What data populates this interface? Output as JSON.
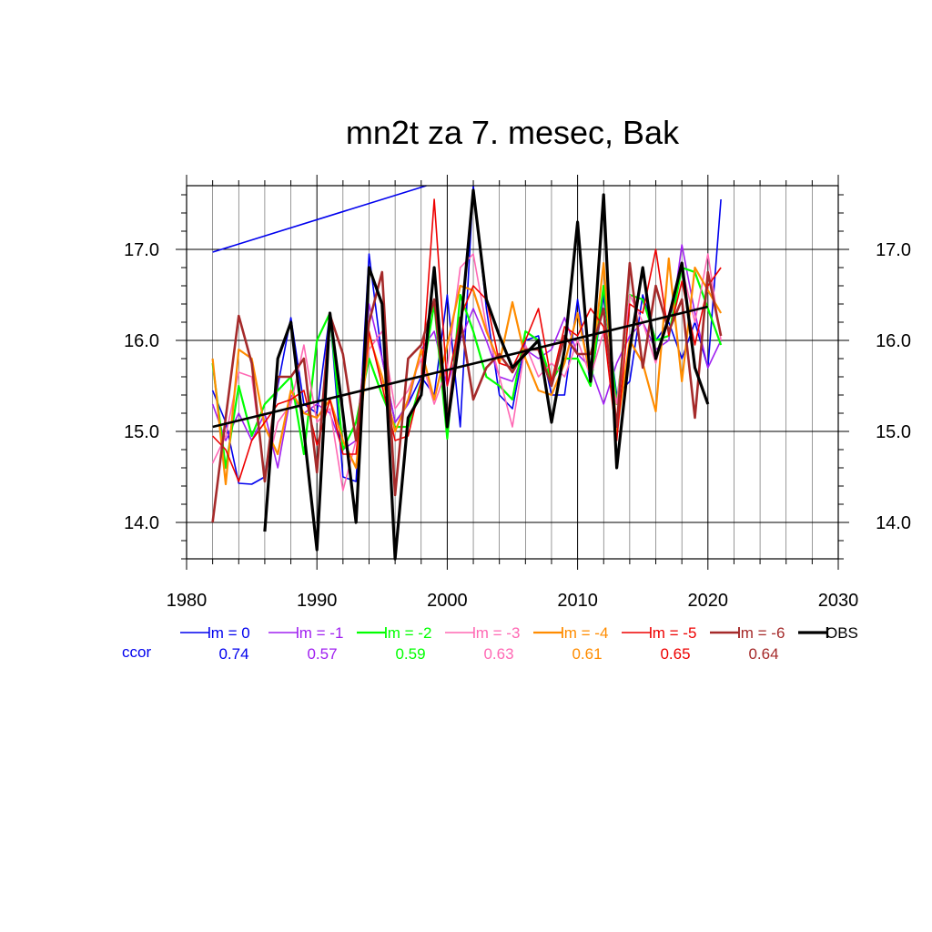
{
  "chart_data": {
    "type": "line",
    "title": "mn2t za 7. mesec, Bak",
    "xlabel": "",
    "ylabel": "",
    "xlim": [
      1980,
      2030
    ],
    "ylim": [
      13.6,
      17.7
    ],
    "xticks": [
      1980,
      1990,
      2000,
      2010,
      2020,
      2030
    ],
    "xtick_labels": [
      "1980",
      "1990",
      "2000",
      "2010",
      "2020",
      "2030"
    ],
    "yticks": [
      14.0,
      15.0,
      16.0,
      17.0
    ],
    "ytick_labels": [
      "14.0",
      "15.0",
      "16.0",
      "17.0"
    ],
    "grid": true,
    "ccor_label": "ccor",
    "series": [
      {
        "name": "lm = 0",
        "ccor": "0.74",
        "color": "#0000ee",
        "width": 1.6,
        "x": [
          1982,
          1983,
          1984,
          1985,
          1986,
          1987,
          1988,
          1989,
          1990,
          1991,
          1992,
          1993,
          1994,
          1995,
          1996,
          1997,
          1998,
          1999,
          2000,
          2001,
          2002,
          2003,
          2004,
          2005,
          2006,
          2007,
          2008,
          2009,
          2010,
          2011,
          2012,
          2013,
          2014,
          2015,
          2016,
          2017,
          2018,
          2019,
          2020,
          2021
        ],
        "y": [
          15.45,
          15.1,
          14.43,
          14.42,
          14.5,
          15.5,
          16.25,
          15.3,
          15.2,
          16.3,
          14.5,
          14.45,
          16.95,
          15.8,
          15.1,
          15.3,
          15.6,
          15.4,
          16.5,
          15.05,
          17.7,
          16.35,
          15.4,
          15.25,
          16.0,
          16.05,
          15.4,
          15.4,
          16.45,
          15.5,
          16.5,
          15.4,
          15.55,
          16.5,
          16.0,
          16.2,
          15.8,
          16.2,
          15.7,
          17.55
        ]
      },
      {
        "name": "lm = -1",
        "ccor": "0.57",
        "color": "#a020f0",
        "width": 1.6,
        "x": [
          1982,
          1983,
          1984,
          1985,
          1986,
          1987,
          1988,
          1989,
          1990,
          1991,
          1992,
          1993,
          1994,
          1995,
          1996,
          1997,
          1998,
          1999,
          2000,
          2001,
          2002,
          2003,
          2004,
          2005,
          2006,
          2007,
          2008,
          2009,
          2010,
          2011,
          2012,
          2013,
          2014,
          2015,
          2016,
          2017,
          2018,
          2019,
          2020,
          2021
        ],
        "y": [
          15.3,
          14.9,
          15.2,
          14.9,
          15.2,
          14.6,
          15.4,
          15.2,
          15.3,
          15.2,
          14.8,
          14.9,
          16.4,
          15.8,
          15.1,
          15.3,
          15.9,
          16.1,
          15.5,
          16.0,
          16.35,
          16.0,
          15.6,
          15.55,
          15.9,
          15.8,
          15.9,
          16.25,
          15.85,
          15.7,
          15.3,
          15.75,
          16.05,
          16.2,
          15.9,
          16.0,
          17.05,
          16.3,
          15.7,
          16.0
        ]
      },
      {
        "name": "lm = -2",
        "ccor": "0.59",
        "color": "#00ff00",
        "width": 2.2,
        "x": [
          1982,
          1983,
          1984,
          1985,
          1986,
          1987,
          1988,
          1989,
          1990,
          1991,
          1992,
          1993,
          1994,
          1995,
          1996,
          1997,
          1998,
          1999,
          2000,
          2001,
          2002,
          2003,
          2004,
          2005,
          2006,
          2007,
          2008,
          2009,
          2010,
          2011,
          2012,
          2013,
          2014,
          2015,
          2016,
          2017,
          2018,
          2019,
          2020,
          2021
        ],
        "y": [
          15.75,
          14.6,
          15.5,
          14.95,
          15.3,
          15.45,
          15.6,
          14.75,
          16.0,
          16.3,
          14.8,
          15.1,
          15.8,
          15.4,
          15.05,
          15.05,
          15.55,
          16.4,
          14.92,
          16.5,
          16.1,
          15.6,
          15.5,
          15.35,
          16.1,
          16.0,
          15.55,
          15.8,
          15.8,
          15.5,
          16.6,
          15.3,
          16.5,
          16.45,
          16.0,
          16.05,
          16.8,
          16.75,
          16.35,
          15.95
        ]
      },
      {
        "name": "lm = -3",
        "ccor": "0.63",
        "color": "#ff69b4",
        "width": 1.6,
        "x": [
          1982,
          1983,
          1984,
          1985,
          1986,
          1987,
          1988,
          1989,
          1990,
          1991,
          1992,
          1993,
          1994,
          1995,
          1996,
          1997,
          1998,
          1999,
          2000,
          2001,
          2002,
          2003,
          2004,
          2005,
          2006,
          2007,
          2008,
          2009,
          2010,
          2011,
          2012,
          2013,
          2014,
          2015,
          2016,
          2017,
          2018,
          2019,
          2020,
          2021
        ],
        "y": [
          14.65,
          14.95,
          15.65,
          15.6,
          14.5,
          15.1,
          15.3,
          15.95,
          15.1,
          15.25,
          14.35,
          14.9,
          15.9,
          16.1,
          15.25,
          15.45,
          15.8,
          15.3,
          15.7,
          16.8,
          16.95,
          16.15,
          15.6,
          15.05,
          15.95,
          15.6,
          15.75,
          15.6,
          16.0,
          15.6,
          16.1,
          15.3,
          16.5,
          16.2,
          15.75,
          16.3,
          16.8,
          16.2,
          16.95,
          16.0
        ]
      },
      {
        "name": "lm = -4",
        "ccor": "0.61",
        "color": "#ff8c00",
        "width": 2.2,
        "x": [
          1982,
          1983,
          1984,
          1985,
          1986,
          1987,
          1988,
          1989,
          1990,
          1991,
          1992,
          1993,
          1994,
          1995,
          1996,
          1997,
          1998,
          1999,
          2000,
          2001,
          2002,
          2003,
          2004,
          2005,
          2006,
          2007,
          2008,
          2009,
          2010,
          2011,
          2012,
          2013,
          2014,
          2015,
          2016,
          2017,
          2018,
          2019,
          2020,
          2021
        ],
        "y": [
          15.8,
          14.42,
          15.9,
          15.8,
          15.05,
          14.75,
          15.45,
          15.2,
          15.15,
          15.35,
          14.9,
          14.6,
          16.05,
          15.6,
          15.0,
          15.35,
          15.9,
          15.35,
          15.95,
          16.6,
          16.55,
          16.1,
          15.75,
          16.42,
          15.8,
          15.45,
          15.4,
          15.75,
          16.3,
          15.6,
          16.85,
          15.0,
          16.0,
          15.75,
          15.22,
          16.9,
          15.55,
          16.8,
          16.55,
          16.3
        ]
      },
      {
        "name": "lm = -5",
        "ccor": "0.65",
        "color": "#ee0000",
        "width": 1.6,
        "x": [
          1982,
          1983,
          1984,
          1985,
          1986,
          1987,
          1988,
          1989,
          1990,
          1991,
          1992,
          1993,
          1994,
          1995,
          1996,
          1997,
          1998,
          1999,
          2000,
          2001,
          2002,
          2003,
          2004,
          2005,
          2006,
          2007,
          2008,
          2009,
          2010,
          2011,
          2012,
          2013,
          2014,
          2015,
          2016,
          2017,
          2018,
          2019,
          2020,
          2021
        ],
        "y": [
          14.95,
          14.8,
          14.45,
          14.9,
          15.1,
          15.3,
          15.35,
          15.45,
          14.85,
          15.35,
          14.75,
          14.75,
          16.1,
          15.5,
          14.9,
          14.95,
          15.55,
          17.55,
          15.5,
          16.25,
          16.6,
          16.45,
          15.75,
          15.7,
          16.0,
          16.35,
          15.55,
          16.15,
          16.05,
          16.35,
          16.15,
          14.9,
          16.4,
          16.3,
          17.0,
          16.05,
          16.65,
          15.95,
          16.6,
          16.8
        ]
      },
      {
        "name": "lm = -6",
        "ccor": "0.64",
        "color": "#a52a2a",
        "width": 2.6,
        "x": [
          1982,
          1983,
          1984,
          1985,
          1986,
          1987,
          1988,
          1989,
          1990,
          1991,
          1992,
          1993,
          1994,
          1995,
          1996,
          1997,
          1998,
          1999,
          2000,
          2001,
          2002,
          2003,
          2004,
          2005,
          2006,
          2007,
          2008,
          2009,
          2010,
          2011,
          2012,
          2013,
          2014,
          2015,
          2016,
          2017,
          2018,
          2019,
          2020,
          2021
        ],
        "y": [
          14.0,
          15.15,
          16.27,
          15.75,
          14.45,
          15.6,
          15.6,
          15.8,
          14.55,
          16.28,
          15.85,
          14.9,
          16.2,
          16.75,
          14.3,
          15.8,
          15.95,
          16.45,
          15.1,
          16.25,
          15.35,
          15.7,
          15.85,
          15.65,
          15.9,
          15.9,
          15.5,
          16.05,
          15.85,
          15.85,
          16.35,
          15.05,
          16.85,
          15.7,
          16.6,
          16.1,
          16.45,
          15.15,
          16.75,
          16.05
        ]
      },
      {
        "name": "OBS",
        "ccor": "",
        "color": "#000000",
        "width": 3.2,
        "x": [
          1986,
          1987,
          1988,
          1989,
          1990,
          1991,
          1992,
          1993,
          1994,
          1995,
          1996,
          1997,
          1998,
          1999,
          2000,
          2001,
          2002,
          2003,
          2004,
          2005,
          2006,
          2007,
          2008,
          2009,
          2010,
          2011,
          2012,
          2013,
          2014,
          2015,
          2016,
          2017,
          2018,
          2019,
          2020
        ],
        "y": [
          13.9,
          15.8,
          16.2,
          15.0,
          13.7,
          16.3,
          15.2,
          14.0,
          16.8,
          16.4,
          13.6,
          15.15,
          15.4,
          16.8,
          15.05,
          16.1,
          17.65,
          16.45,
          16.05,
          15.7,
          15.85,
          16.0,
          15.1,
          15.9,
          17.3,
          15.55,
          17.6,
          14.6,
          15.9,
          16.8,
          15.8,
          16.25,
          16.85,
          15.7,
          15.3
        ]
      }
    ],
    "trend_lines": [
      {
        "color": "#000000",
        "width": 2.6,
        "x": [
          1982,
          2020
        ],
        "y": [
          15.05,
          16.37
        ]
      },
      {
        "color": "#0000ee",
        "width": 1.6,
        "x": [
          1982,
          1998.4
        ],
        "y": [
          16.97,
          17.7
        ]
      }
    ]
  }
}
